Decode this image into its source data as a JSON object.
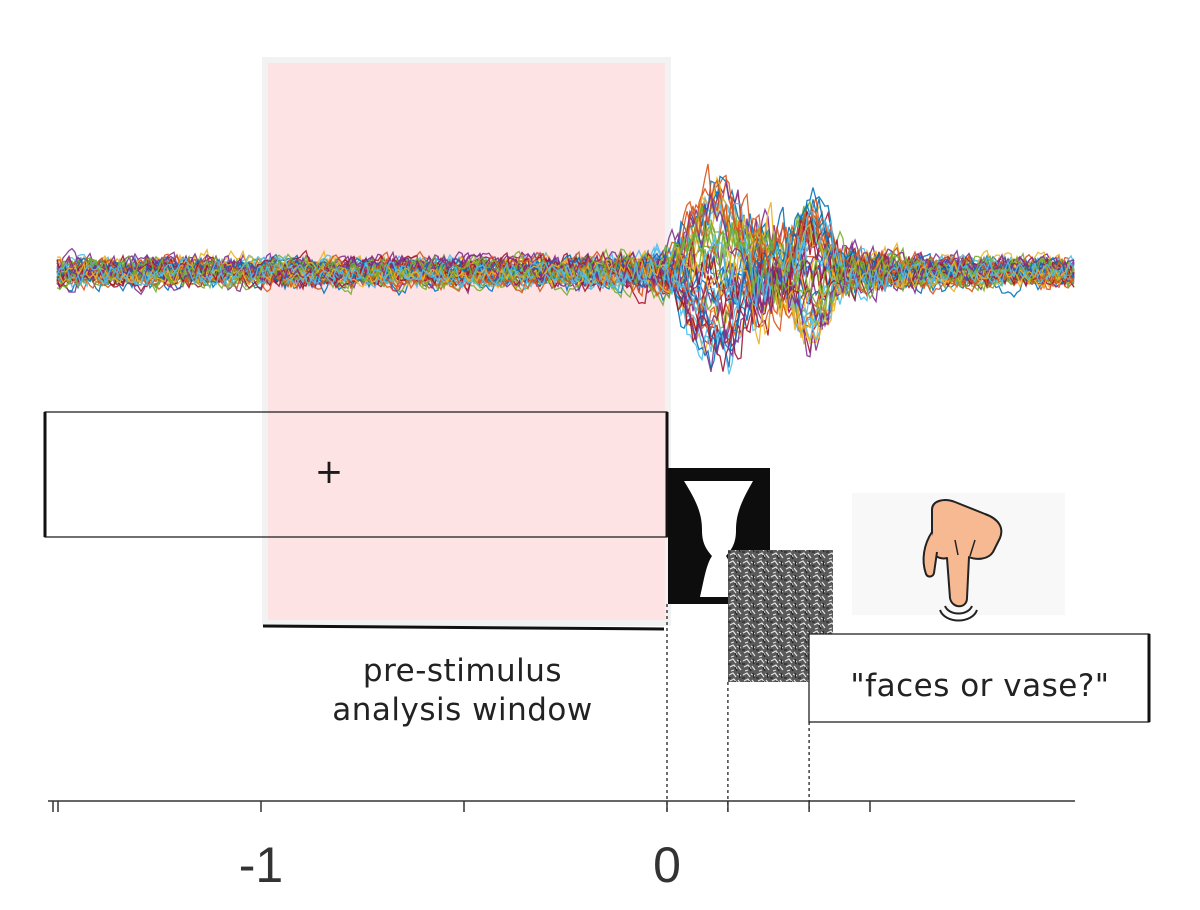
{
  "window_label": {
    "line1": "pre-stimulus",
    "line2": "analysis window"
  },
  "response_prompt": "\"faces or vase?\"",
  "fixation_symbol": "+",
  "time_axis": {
    "range": [
      -1.5,
      1.0
    ],
    "minor_ticks": [
      -1.5,
      -1.0,
      -0.5,
      0.0,
      0.15,
      0.35,
      0.5
    ],
    "tick_labels": [
      {
        "value": -1,
        "text": "-1"
      },
      {
        "value": 0,
        "text": "0"
      }
    ]
  },
  "analysis_window": {
    "start": -1.0,
    "end": 0.0,
    "color": "#fde3e4"
  },
  "events": {
    "fixation": {
      "start": -1.5,
      "end": 0.0
    },
    "stimulus_onset": 0.0,
    "mask_onset": 0.15,
    "response_onset": 0.35
  },
  "trace_colors": [
    "#0072bd",
    "#d95319",
    "#edb120",
    "#7e2f8e",
    "#77ac30",
    "#4dbeee",
    "#a2142f"
  ],
  "icons": {
    "stimulus": "rubin-vase-icon",
    "mask": "noise-mask-icon",
    "response": "pointing-hand-icon"
  }
}
